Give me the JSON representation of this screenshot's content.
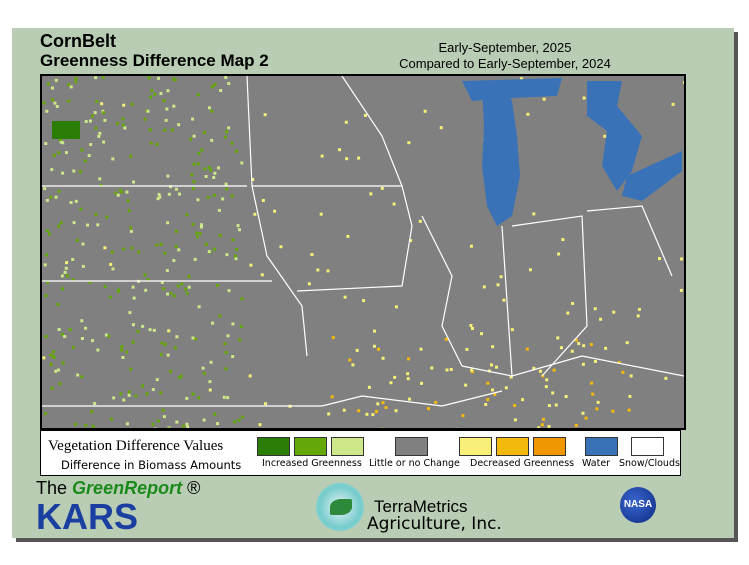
{
  "header": {
    "region": "CornBelt",
    "title": "Greenness Difference Map 2",
    "period": "Early-September, 2025",
    "comparison": "Compared to Early-September, 2024"
  },
  "legend": {
    "title": "Vegetation Difference Values",
    "subtitle": "Difference in Biomass Amounts",
    "groups": [
      {
        "label": "Increased Greenness",
        "colors": [
          "#2a7d05",
          "#66a80a",
          "#cde88a"
        ]
      },
      {
        "label": "Little or no Change",
        "colors": [
          "#808080"
        ]
      },
      {
        "label": "Decreased Greenness",
        "colors": [
          "#f7ef78",
          "#f3b90d",
          "#ef9600"
        ]
      },
      {
        "label": "Water",
        "colors": [
          "#3a72b8"
        ]
      },
      {
        "label": "Snow/Clouds",
        "colors": [
          "#ffffff"
        ]
      }
    ]
  },
  "footer": {
    "greenreport_the": "The",
    "greenreport_name": "GreenReport",
    "registered": "®",
    "kars": "KARS",
    "terrametrics_1": "TerraMetrics",
    "terrametrics_2": "Agriculture, Inc.",
    "nasa": "NASA"
  }
}
